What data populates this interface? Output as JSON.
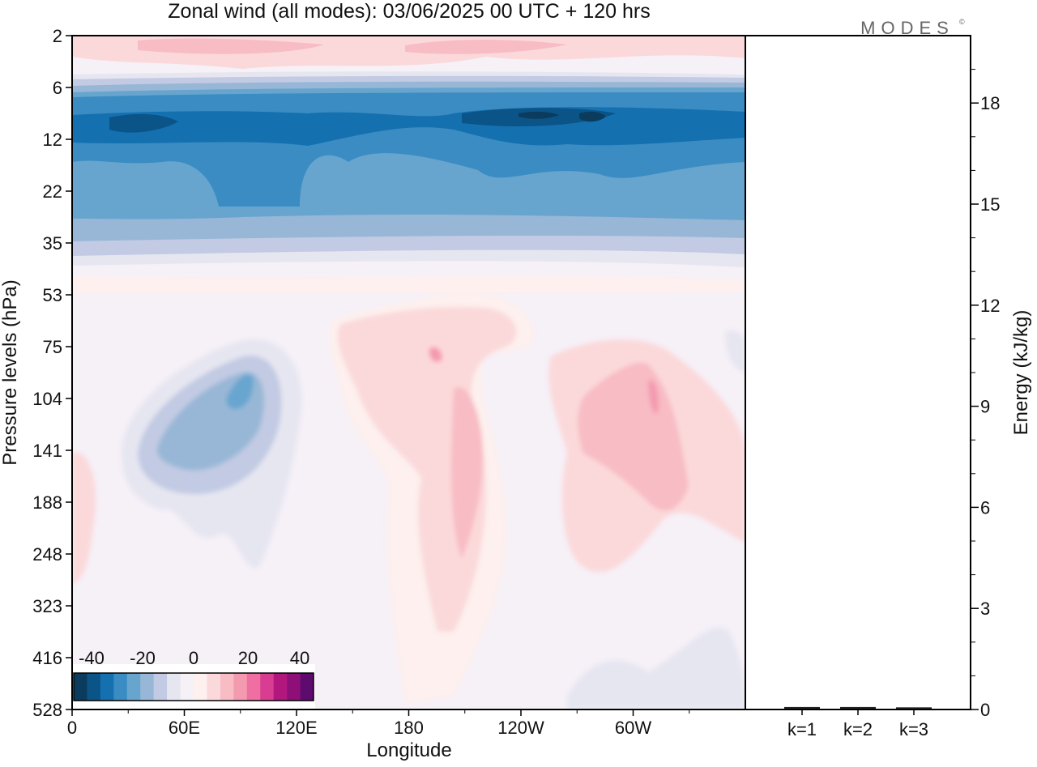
{
  "title": "Zonal wind (all modes):  03/06/2025  00 UTC  + 120 hrs",
  "brand": "MODES",
  "brand_mark": "©",
  "chart_data": [
    {
      "type": "heatmap",
      "title": "Zonal wind (all modes):  03/06/2025  00 UTC  + 120 hrs",
      "xlabel": "Longitude",
      "ylabel": "Pressure levels (hPa)",
      "x_ticks": [
        "0",
        "60E",
        "120E",
        "180",
        "120W",
        "60W"
      ],
      "y_ticks": [
        "2",
        "6",
        "12",
        "22",
        "35",
        "53",
        "75",
        "104",
        "141",
        "188",
        "248",
        "323",
        "416",
        "528"
      ],
      "colorbar": {
        "ticks": [
          "-40",
          "-20",
          "0",
          "20",
          "40"
        ],
        "colors": [
          "#0b3c5d",
          "#0a5488",
          "#1570b0",
          "#3a8cc2",
          "#67a5cf",
          "#98b7d6",
          "#c2cbe3",
          "#e6e6f1",
          "#f6f0f7",
          "#fdf0ee",
          "#fbd9da",
          "#f8bcc5",
          "#f49ab0",
          "#ef6fa2",
          "#d93d91",
          "#b2177d",
          "#8e0f78",
          "#5e0b6f"
        ]
      },
      "approx_wind_ms": {
        "note_levels": [
          "2",
          "6",
          "12",
          "22",
          "35",
          "53",
          "75",
          "104",
          "141",
          "188",
          "248",
          "323",
          "416",
          "528"
        ],
        "zonal_mean_profile": [
          10,
          -15,
          -35,
          -25,
          -12,
          2,
          3,
          2,
          3,
          3,
          2,
          1,
          1,
          0
        ]
      }
    },
    {
      "type": "bar",
      "categories": [
        "k=1",
        "k=2",
        "k=3"
      ],
      "values": [
        0.05,
        0.05,
        0.04
      ],
      "ylabel": "Energy (kJ/kg)",
      "ylim": [
        0,
        20
      ],
      "y_ticks": [
        "0",
        "3",
        "6",
        "9",
        "12",
        "15",
        "18"
      ]
    }
  ]
}
